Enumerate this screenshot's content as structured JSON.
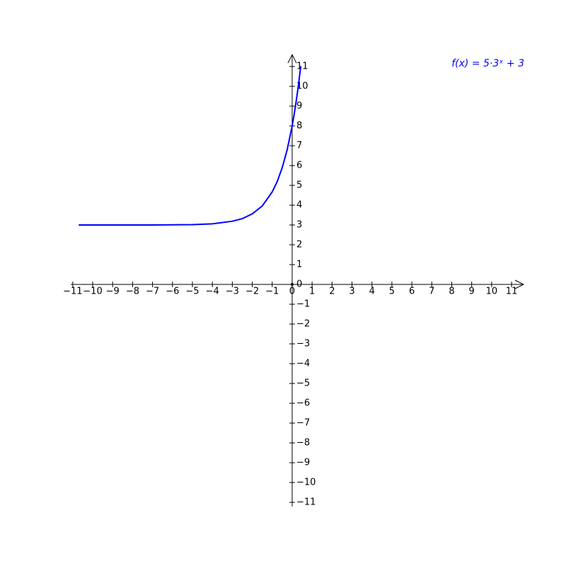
{
  "chart_data": {
    "type": "line",
    "title": "f(x) = 5·3ˣ + 3",
    "xlim": [
      -11.1,
      11.6
    ],
    "ylim": [
      -11.2,
      11.6
    ],
    "xticks": [
      {
        "value": -11,
        "label": "−11"
      },
      {
        "value": -10,
        "label": "−10"
      },
      {
        "value": -9,
        "label": "−9"
      },
      {
        "value": -8,
        "label": "−8"
      },
      {
        "value": -7,
        "label": "−7"
      },
      {
        "value": -6,
        "label": "−6"
      },
      {
        "value": -5,
        "label": "−5"
      },
      {
        "value": -4,
        "label": "−4"
      },
      {
        "value": -3,
        "label": "−3"
      },
      {
        "value": -2,
        "label": "−2"
      },
      {
        "value": -1,
        "label": "−1"
      },
      0,
      1,
      2,
      3,
      4,
      5,
      6,
      7,
      8,
      9,
      10,
      11
    ],
    "yticks": [
      {
        "value": -11,
        "label": "−11"
      },
      {
        "value": -10,
        "label": "−10"
      },
      {
        "value": -9,
        "label": "−9"
      },
      {
        "value": -8,
        "label": "−8"
      },
      {
        "value": -7,
        "label": "−7"
      },
      {
        "value": -6,
        "label": "−6"
      },
      {
        "value": -5,
        "label": "−5"
      },
      {
        "value": -4,
        "label": "−4"
      },
      {
        "value": -3,
        "label": "−3"
      },
      {
        "value": -2,
        "label": "−2"
      },
      {
        "value": -1,
        "label": "−1"
      },
      0,
      1,
      2,
      3,
      4,
      5,
      6,
      7,
      8,
      9,
      10,
      11
    ],
    "series": [
      {
        "color": "#0000ff",
        "x": [
          -10.7,
          -9,
          -8,
          -7,
          -6,
          -5,
          -4,
          -3,
          -2.5,
          -2,
          -1.5,
          -1,
          -0.75,
          -0.5,
          -0.25,
          0,
          0.1,
          0.2,
          0.3,
          0.4,
          0.43
        ],
        "values": [
          3.0,
          3.0,
          3.0,
          3.0,
          3.01,
          3.02,
          3.06,
          3.19,
          3.32,
          3.56,
          3.96,
          4.67,
          5.19,
          5.89,
          6.8,
          8,
          8.58,
          9.23,
          9.95,
          10.76,
          11.02
        ]
      }
    ]
  }
}
